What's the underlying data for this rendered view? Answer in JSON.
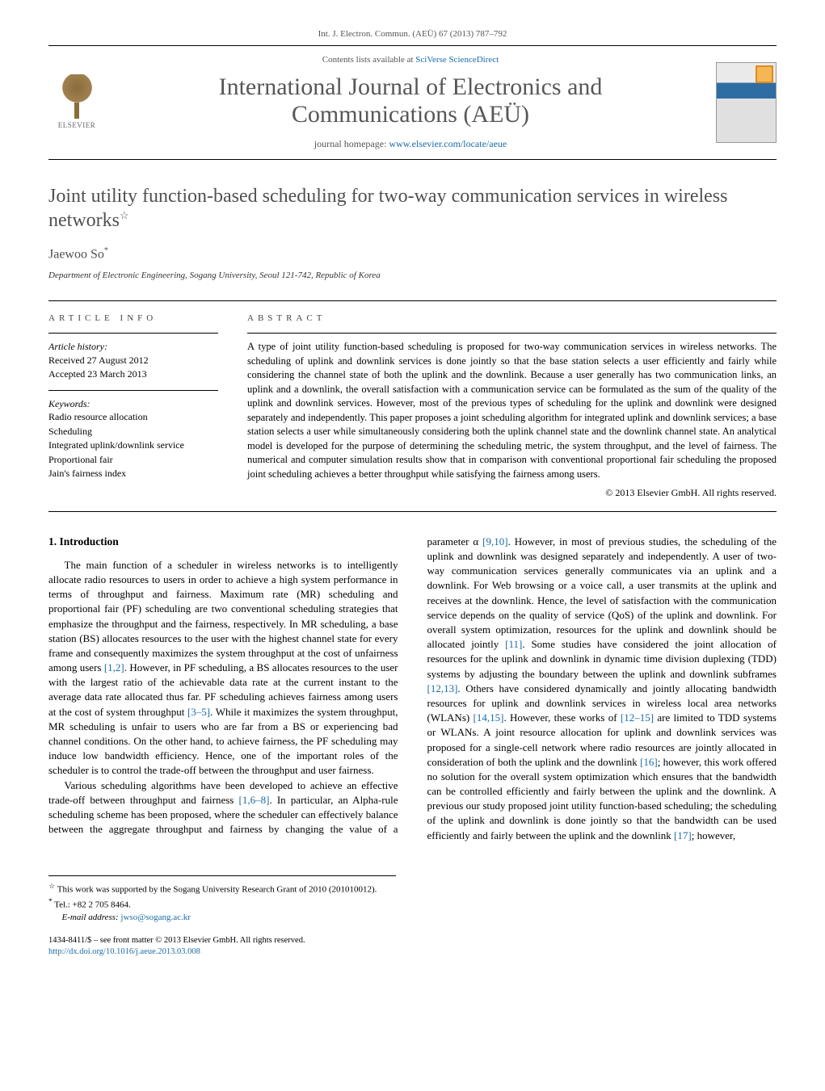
{
  "header": {
    "citation": "Int. J. Electron. Commun. (AEÜ) 67 (2013) 787–792",
    "contents_line_prefix": "Contents lists available at ",
    "contents_link": "SciVerse ScienceDirect",
    "journal_title_line1": "International Journal of Electronics and",
    "journal_title_line2": "Communications (AEÜ)",
    "homepage_prefix": "journal homepage: ",
    "homepage_url": "www.elsevier.com/locate/aeue",
    "elsevier_label": "ELSEVIER"
  },
  "article": {
    "title": "Joint utility function-based scheduling for two-way communication services in wireless networks",
    "title_note_marker": "☆",
    "author": "Jaewoo So",
    "author_corr_marker": "*",
    "affiliation": "Department of Electronic Engineering, Sogang University, Seoul 121-742, Republic of Korea"
  },
  "info": {
    "block_label": "ARTICLE INFO",
    "history_label": "Article history:",
    "history_received": "Received 27 August 2012",
    "history_accepted": "Accepted 23 March 2013",
    "keywords_label": "Keywords:",
    "keywords": [
      "Radio resource allocation",
      "Scheduling",
      "Integrated uplink/downlink service",
      "Proportional fair",
      "Jain's fairness index"
    ]
  },
  "abstract": {
    "block_label": "ABSTRACT",
    "text": "A type of joint utility function-based scheduling is proposed for two-way communication services in wireless networks. The scheduling of uplink and downlink services is done jointly so that the base station selects a user efficiently and fairly while considering the channel state of both the uplink and the downlink. Because a user generally has two communication links, an uplink and a downlink, the overall satisfaction with a communication service can be formulated as the sum of the quality of the uplink and downlink services. However, most of the previous types of scheduling for the uplink and downlink were designed separately and independently. This paper proposes a joint scheduling algorithm for integrated uplink and downlink services; a base station selects a user while simultaneously considering both the uplink channel state and the downlink channel state. An analytical model is developed for the purpose of determining the scheduling metric, the system throughput, and the level of fairness. The numerical and computer simulation results show that in comparison with conventional proportional fair scheduling the proposed joint scheduling achieves a better throughput while satisfying the fairness among users.",
    "copyright": "© 2013 Elsevier GmbH. All rights reserved."
  },
  "body": {
    "section_number": "1.",
    "section_title": "Introduction",
    "para1": "The main function of a scheduler in wireless networks is to intelligently allocate radio resources to users in order to achieve a high system performance in terms of throughput and fairness. Maximum rate (MR) scheduling and proportional fair (PF) scheduling are two conventional scheduling strategies that emphasize the throughput and the fairness, respectively. In MR scheduling, a base station (BS) allocates resources to the user with the highest channel state for every frame and consequently maximizes the system throughput at the cost of unfairness among users [1,2]. However, in PF scheduling, a BS allocates resources to the user with the largest ratio of the achievable data rate at the current instant to the average data rate allocated thus far. PF scheduling achieves fairness among users at the cost of system throughput [3–5]. While it maximizes the system throughput, MR scheduling is unfair to users who are far from a BS or experiencing bad channel conditions. On the other hand, to achieve fairness, the PF scheduling may induce low bandwidth efficiency. Hence, one of the important roles of the scheduler is to control the trade-off between the throughput and user fairness.",
    "para2": "Various scheduling algorithms have been developed to achieve an effective trade-off between throughput and fairness [1,6–8]. In particular, an Alpha-rule scheduling scheme has been proposed, where the scheduler can effectively balance between the aggregate throughput and fairness by changing the value of a parameter α [9,10]. However, in most of previous studies, the scheduling of the uplink and downlink was designed separately and independently. A user of two-way communication services generally communicates via an uplink and a downlink. For Web browsing or a voice call, a user transmits at the uplink and receives at the downlink. Hence, the level of satisfaction with the communication service depends on the quality of service (QoS) of the uplink and downlink. For overall system optimization, resources for the uplink and downlink should be allocated jointly [11]. Some studies have considered the joint allocation of resources for the uplink and downlink in dynamic time division duplexing (TDD) systems by adjusting the boundary between the uplink and downlink subframes [12,13]. Others have considered dynamically and jointly allocating bandwidth resources for uplink and downlink services in wireless local area networks (WLANs) [14,15]. However, these works of [12–15] are limited to TDD systems or WLANs. A joint resource allocation for uplink and downlink services was proposed for a single-cell network where radio resources are jointly allocated in consideration of both the uplink and the downlink [16]; however, this work offered no solution for the overall system optimization which ensures that the bandwidth can be controlled efficiently and fairly between the uplink and the downlink. A previous our study proposed joint utility function-based scheduling; the scheduling of the uplink and downlink is done jointly so that the bandwidth can be used efficiently and fairly between the uplink and the downlink [17]; however,"
  },
  "footnotes": {
    "funding_marker": "☆",
    "funding_text": "This work was supported by the Sogang University Research Grant of 2010 (201010012).",
    "corr_marker": "*",
    "tel": "Tel.: +82 2 705 8464.",
    "email_label": "E-mail address:",
    "email": "jwso@sogang.ac.kr"
  },
  "footer": {
    "issn_line": "1434-8411/$ – see front matter © 2013 Elsevier GmbH. All rights reserved.",
    "doi_url": "http://dx.doi.org/10.1016/j.aeue.2013.03.008"
  },
  "refs": {
    "r12": "[1,2]",
    "r35": "[3–5]",
    "r168": "[1,6–8]",
    "r910": "[9,10]",
    "r11": "[11]",
    "r1213": "[12,13]",
    "r1415": "[14,15]",
    "r1215": "[12–15]",
    "r16": "[16]",
    "r17": "[17]"
  },
  "colors": {
    "link": "#1a6ba8",
    "text_grey": "#505050",
    "line": "#000000"
  }
}
